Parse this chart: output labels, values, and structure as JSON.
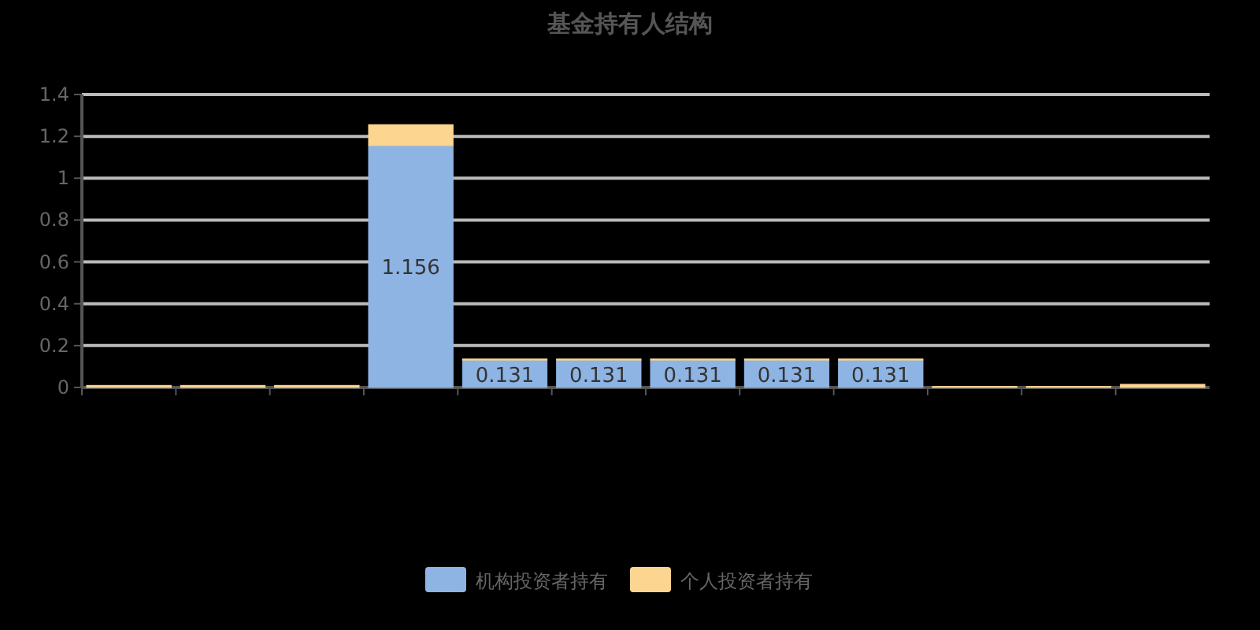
{
  "chart_data": {
    "type": "bar",
    "title": "基金持有人结构",
    "stacked": true,
    "categories": [
      null,
      null,
      null,
      null,
      null,
      null,
      null,
      null,
      null,
      null,
      null,
      null
    ],
    "series": [
      {
        "name": "机构投资者持有",
        "color": "#8eb4e3",
        "values": [
          0,
          0,
          0,
          1.156,
          0.131,
          0.131,
          0.131,
          0.131,
          0.131,
          0,
          0,
          0
        ],
        "value_labels": [
          null,
          null,
          null,
          "1.156",
          "0.131",
          "0.131",
          "0.131",
          "0.131",
          "0.131",
          null,
          null,
          null
        ]
      },
      {
        "name": "个人投资者持有",
        "color": "#fcd591",
        "values": [
          0.01,
          0.01,
          0.01,
          0.1,
          0.005,
          0.005,
          0.005,
          0.005,
          0.005,
          0.005,
          0.005,
          0.015
        ]
      }
    ],
    "ylim": [
      0,
      1.4
    ],
    "yticks": [
      0,
      0.2,
      0.4,
      0.6,
      0.8,
      1,
      1.2,
      1.4
    ],
    "grid": "y",
    "legend": "bottom"
  }
}
